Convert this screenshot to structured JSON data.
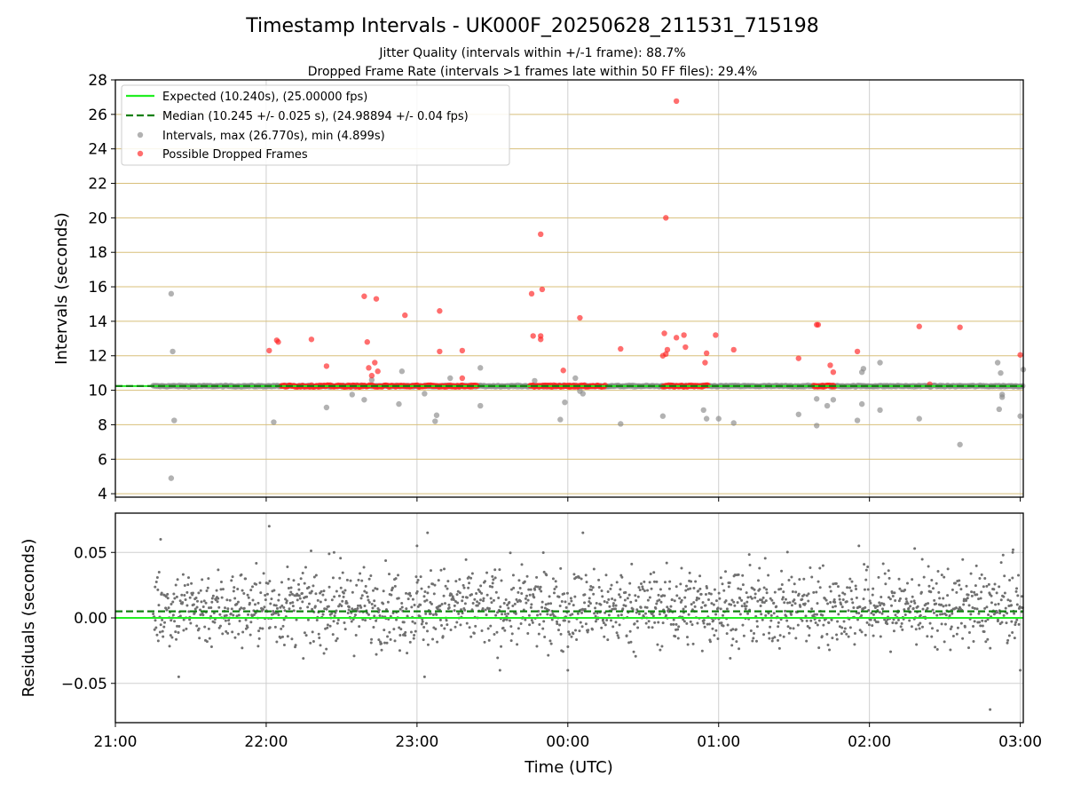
{
  "chart_data": [
    {
      "type": "scatter",
      "title": "Timestamp Intervals - UK000F_20250628_211531_715198",
      "subtitle_line1": "Jitter Quality (intervals within +/-1 frame): 88.7%",
      "subtitle_line2": "Dropped Frame Rate (intervals >1 frames late within 50 FF files): 29.4%",
      "ylabel": "Intervals (seconds)",
      "ylim": [
        3.8,
        28
      ],
      "yticks": [
        4,
        6,
        8,
        10,
        12,
        14,
        16,
        18,
        20,
        22,
        24,
        26,
        28
      ],
      "xlim_hours": [
        -3.0,
        3.02
      ],
      "grid": true,
      "legend_placement": "upper-left",
      "legend": [
        {
          "label": "Expected (10.240s), (25.00000 fps)",
          "style": "solid-line",
          "color": "#22ee22"
        },
        {
          "label": "Median (10.245 +/- 0.025 s), (24.98894 +/- 0.04 fps)",
          "style": "dashed-line",
          "color": "#128012"
        },
        {
          "label": "Intervals, max (26.770s), min (4.899s)",
          "style": "marker",
          "color": "#888888"
        },
        {
          "label": "Possible Dropped Frames",
          "style": "marker",
          "color": "#ff2020"
        }
      ],
      "expected": 10.24,
      "median": 10.245,
      "series": [
        {
          "name": "Intervals, max (26.770s), min (4.899s)",
          "color": "#888888",
          "outliers": [
            [
              -2.63,
              15.6
            ],
            [
              -2.62,
              12.25
            ],
            [
              -2.61,
              8.25
            ],
            [
              -2.63,
              4.9
            ],
            [
              -1.95,
              8.15
            ],
            [
              -1.6,
              9.0
            ],
            [
              -1.43,
              9.75
            ],
            [
              -1.35,
              9.45
            ],
            [
              -1.3,
              10.6
            ],
            [
              -1.12,
              9.2
            ],
            [
              -1.1,
              11.1
            ],
            [
              -0.95,
              9.8
            ],
            [
              -0.88,
              8.2
            ],
            [
              -0.87,
              8.55
            ],
            [
              -0.78,
              10.7
            ],
            [
              -0.58,
              9.1
            ],
            [
              -0.58,
              11.3
            ],
            [
              -0.22,
              10.55
            ],
            [
              -0.05,
              8.3
            ],
            [
              -0.02,
              9.3
            ],
            [
              0.05,
              10.7
            ],
            [
              0.08,
              9.95
            ],
            [
              0.1,
              9.8
            ],
            [
              0.35,
              8.05
            ],
            [
              0.63,
              8.5
            ],
            [
              0.9,
              8.85
            ],
            [
              0.92,
              8.35
            ],
            [
              1.0,
              8.35
            ],
            [
              1.1,
              8.1
            ],
            [
              1.53,
              8.6
            ],
            [
              1.65,
              7.95
            ],
            [
              1.65,
              9.5
            ],
            [
              1.72,
              9.1
            ],
            [
              1.76,
              9.45
            ],
            [
              1.92,
              8.25
            ],
            [
              1.95,
              9.2
            ],
            [
              1.95,
              11.05
            ],
            [
              1.96,
              11.25
            ],
            [
              2.07,
              11.6
            ],
            [
              2.07,
              8.85
            ],
            [
              2.33,
              8.35
            ],
            [
              2.6,
              6.85
            ],
            [
              2.85,
              11.6
            ],
            [
              2.87,
              11.0
            ],
            [
              2.88,
              9.6
            ],
            [
              2.86,
              8.9
            ],
            [
              2.88,
              9.75
            ],
            [
              3.0,
              8.5
            ],
            [
              3.02,
              11.2
            ]
          ],
          "baseline_band": {
            "x_start": -2.75,
            "x_end": 3.02,
            "y_center": 10.245,
            "note": "dense band of intervals near the median"
          }
        },
        {
          "name": "Possible Dropped Frames",
          "color": "#ff2020",
          "points": [
            [
              -1.98,
              12.3
            ],
            [
              -1.93,
              12.9
            ],
            [
              -1.92,
              12.8
            ],
            [
              -1.7,
              12.95
            ],
            [
              -1.6,
              11.4
            ],
            [
              -1.35,
              15.45
            ],
            [
              -1.33,
              12.8
            ],
            [
              -1.32,
              11.3
            ],
            [
              -1.27,
              15.3
            ],
            [
              -1.28,
              11.6
            ],
            [
              -1.3,
              10.85
            ],
            [
              -1.26,
              11.1
            ],
            [
              -1.08,
              14.35
            ],
            [
              -0.85,
              14.6
            ],
            [
              -0.85,
              12.25
            ],
            [
              -0.7,
              12.3
            ],
            [
              -0.7,
              10.7
            ],
            [
              -0.24,
              15.6
            ],
            [
              -0.23,
              13.15
            ],
            [
              -0.18,
              19.05
            ],
            [
              -0.17,
              15.85
            ],
            [
              -0.18,
              12.95
            ],
            [
              -0.18,
              13.15
            ],
            [
              -0.03,
              11.15
            ],
            [
              0.08,
              14.2
            ],
            [
              0.35,
              12.4
            ],
            [
              0.64,
              13.3
            ],
            [
              0.63,
              12.0
            ],
            [
              0.66,
              12.35
            ],
            [
              0.65,
              12.1
            ],
            [
              0.65,
              20.0
            ],
            [
              0.72,
              26.77
            ],
            [
              0.72,
              13.05
            ],
            [
              0.77,
              13.2
            ],
            [
              0.78,
              12.5
            ],
            [
              0.91,
              11.6
            ],
            [
              0.92,
              12.15
            ],
            [
              0.98,
              13.2
            ],
            [
              1.1,
              12.35
            ],
            [
              1.53,
              11.85
            ],
            [
              1.65,
              13.8
            ],
            [
              1.66,
              13.8
            ],
            [
              1.74,
              11.45
            ],
            [
              1.76,
              11.05
            ],
            [
              1.92,
              12.25
            ],
            [
              2.33,
              13.7
            ],
            [
              2.4,
              10.35
            ],
            [
              2.6,
              13.65
            ],
            [
              3.0,
              12.05
            ]
          ],
          "clusters": [
            [
              -1.9,
              -1.42
            ],
            [
              -1.42,
              -1.12
            ],
            [
              -1.12,
              -0.92
            ],
            [
              -0.92,
              -0.6
            ],
            [
              -0.25,
              0.02
            ],
            [
              0.0,
              0.25
            ],
            [
              0.63,
              0.93
            ],
            [
              1.63,
              1.77
            ]
          ],
          "cluster_y": 10.245
        }
      ]
    },
    {
      "type": "scatter",
      "ylabel": "Residuals (seconds)",
      "xlabel": "Time (UTC)",
      "ylim": [
        -0.08,
        0.08
      ],
      "yticks": [
        -0.05,
        0.0,
        0.05
      ],
      "ytick_labels": [
        "−0.05",
        "0.00",
        "0.05"
      ],
      "xlim_hours": [
        -3.0,
        3.02
      ],
      "xticks_hours": [
        -3,
        -2,
        -1,
        0,
        1,
        2,
        3
      ],
      "xtick_labels": [
        "21:00",
        "22:00",
        "23:00",
        "00:00",
        "01:00",
        "02:00",
        "03:00"
      ],
      "grid": true,
      "expected_residual": 0.0,
      "median_residual": 0.005,
      "series": [
        {
          "name": "residuals",
          "color": "#707070",
          "x_range": [
            -2.75,
            3.02
          ],
          "count": 1800,
          "center": 0.008,
          "spread": 0.015,
          "extremes": [
            [
              -2.7,
              0.06
            ],
            [
              -2.58,
              -0.045
            ],
            [
              -1.98,
              0.07
            ],
            [
              -1.55,
              0.05
            ],
            [
              -1.0,
              0.055
            ],
            [
              -0.95,
              -0.045
            ],
            [
              -0.93,
              0.065
            ],
            [
              -0.45,
              -0.04
            ],
            [
              0.0,
              -0.04
            ],
            [
              0.1,
              0.065
            ],
            [
              1.93,
              0.055
            ],
            [
              2.3,
              0.053
            ],
            [
              2.8,
              -0.07
            ],
            [
              2.95,
              0.05
            ],
            [
              3.0,
              -0.04
            ]
          ]
        }
      ]
    }
  ]
}
